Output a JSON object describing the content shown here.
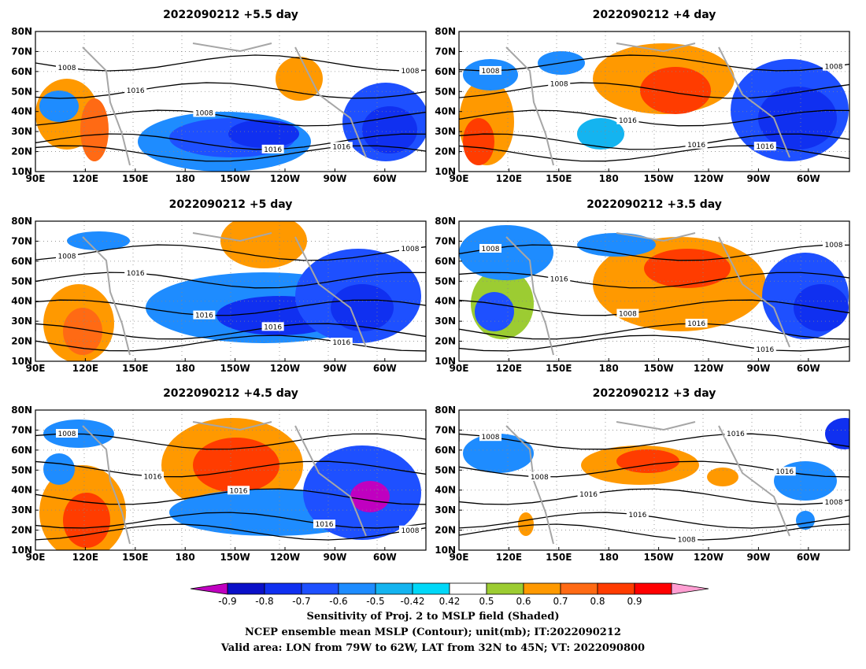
{
  "panels": [
    {
      "title": "2022090212 +5.5 day",
      "contours": [
        "1008",
        "1016",
        "1008",
        "1016",
        "1016",
        "1008"
      ]
    },
    {
      "title": "2022090212 +4 day",
      "contours": [
        "1008",
        "1008",
        "1016",
        "1016",
        "1016",
        "1008"
      ]
    },
    {
      "title": "2022090212 +5 day",
      "contours": [
        "1008",
        "1016",
        "1016",
        "1016",
        "1016",
        "1008"
      ]
    },
    {
      "title": "2022090212 +3.5 day",
      "contours": [
        "1008",
        "1016",
        "1008",
        "1016",
        "1016",
        "1008"
      ]
    },
    {
      "title": "2022090212 +4.5 day",
      "contours": [
        "1008",
        "1016",
        "1016",
        "1016",
        "1008"
      ]
    },
    {
      "title": "2022090212 +3 day",
      "contours": [
        "1008",
        "1008",
        "1016",
        "1016",
        "1008",
        "1016",
        "1016",
        "1008"
      ]
    }
  ],
  "lat_labels": [
    "80N",
    "70N",
    "60N",
    "50N",
    "40N",
    "30N",
    "20N",
    "10N"
  ],
  "lon_labels": [
    "90E",
    "120E",
    "150E",
    "180",
    "150W",
    "120W",
    "90W",
    "60W"
  ],
  "colorbar": {
    "ticks": [
      "-0.9",
      "-0.8",
      "-0.7",
      "-0.6",
      "-0.5",
      "-0.42",
      "0.42",
      "0.5",
      "0.6",
      "0.7",
      "0.8",
      "0.9"
    ],
    "colors": [
      "#c000c0",
      "#0a10c8",
      "#1030f0",
      "#1e50ff",
      "#1e8cff",
      "#14b4f0",
      "#00d8f8",
      "#ffffff",
      "#9ccc32",
      "#ff9900",
      "#ff6a14",
      "#ff3c00",
      "#ff0000",
      "#ff9ed2"
    ]
  },
  "caption": {
    "line1": "Sensitivity of Proj. 2 to MSLP field (Shaded)",
    "line2": "NCEP ensemble mean MSLP (Contour); unit(mb); IT:2022090212",
    "line3": "Valid area: LON from 79W to 62W, LAT from 32N to 45N; VT: 2022090800"
  }
}
